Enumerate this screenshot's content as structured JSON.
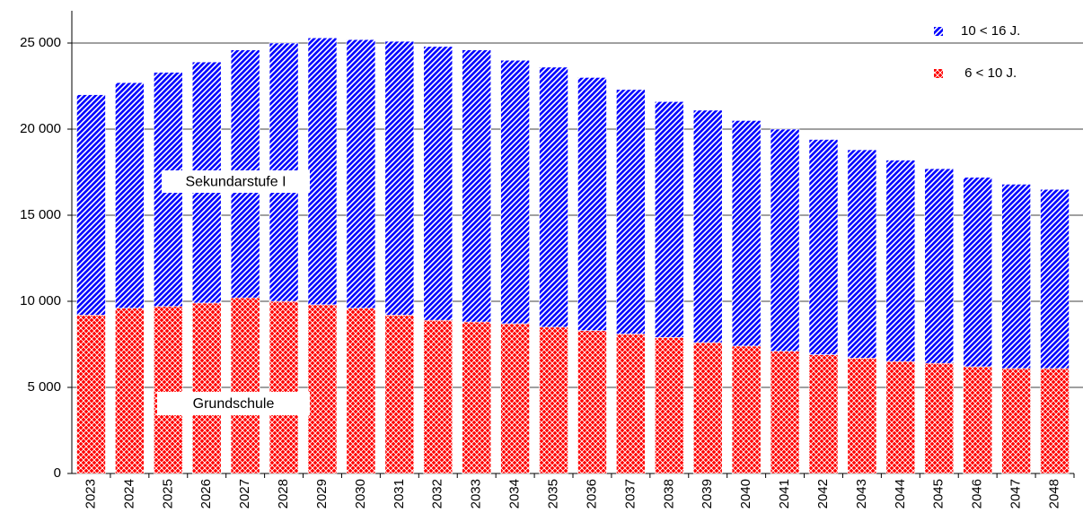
{
  "chart_data": {
    "type": "stacked_bar",
    "categories": [
      "2023",
      "2024",
      "2025",
      "2026",
      "2027",
      "2028",
      "2029",
      "2030",
      "2031",
      "2032",
      "2033",
      "2034",
      "2035",
      "2036",
      "2037",
      "2038",
      "2039",
      "2040",
      "2041",
      "2042",
      "2043",
      "2044",
      "2045",
      "2046",
      "2047",
      "2048"
    ],
    "series": [
      {
        "name": " 6 < 10 J.",
        "color": "#ff0000",
        "values": [
          9200,
          9600,
          9700,
          9900,
          10200,
          10000,
          9800,
          9600,
          9200,
          8900,
          8800,
          8700,
          8500,
          8300,
          8100,
          7900,
          7600,
          7400,
          7100,
          6900,
          6700,
          6500,
          6400,
          6200,
          6100,
          6100
        ]
      },
      {
        "name": "10 < 16 J.",
        "color": "#0000ff",
        "values": [
          12800,
          13100,
          13600,
          14000,
          14400,
          15000,
          15500,
          15600,
          15900,
          15900,
          15800,
          15300,
          15100,
          14700,
          14200,
          13700,
          13500,
          13100,
          12900,
          12500,
          12100,
          11700,
          11300,
          11000,
          10700,
          10400
        ]
      }
    ],
    "annotations": [
      "Sekundarstufe I",
      "Grundschule"
    ],
    "ylim": [
      0,
      26000
    ],
    "yticks": [
      0,
      {
        "value": 5000,
        "label": "5 000"
      },
      {
        "value": 10000,
        "label": "10 000"
      },
      {
        "value": 15000,
        "label": "15 000"
      },
      {
        "value": 20000,
        "label": "20 000"
      },
      {
        "value": 25000,
        "label": "25 000"
      }
    ],
    "grid": true,
    "legend": "top-right"
  }
}
